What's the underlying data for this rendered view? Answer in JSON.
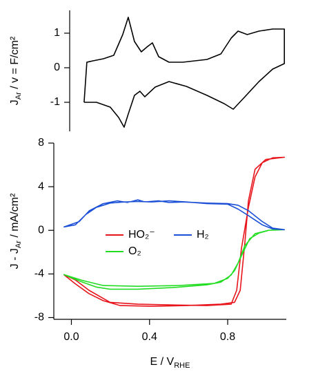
{
  "chart_data": [
    {
      "type": "line",
      "ylabel": [
        {
          "text": "J"
        },
        {
          "text": "Ar",
          "sub": true
        },
        {
          "text": " / v =  F/cm²"
        }
      ],
      "xlim": [
        -0.01,
        1.1
      ],
      "ylim": [
        -1.84,
        1.66
      ],
      "yticks": [
        -1,
        0,
        1
      ],
      "series": [
        {
          "color": "#000000",
          "x": [
            0.064,
            0.078,
            0.11,
            0.163,
            0.216,
            0.262,
            0.29,
            0.322,
            0.357,
            0.386,
            0.414,
            0.446,
            0.499,
            0.57,
            0.694,
            0.765,
            0.818,
            0.853,
            0.9,
            0.96,
            1.03,
            1.09,
            1.09,
            1.03,
            0.96,
            0.888,
            0.828,
            0.782,
            0.694,
            0.588,
            0.499,
            0.428,
            0.375,
            0.35,
            0.322,
            0.29,
            0.269,
            0.241,
            0.198,
            0.127,
            0.064
          ],
          "values": [
            -1.0,
            0.16,
            0.2,
            0.26,
            0.36,
            0.96,
            1.46,
            0.76,
            0.46,
            0.6,
            0.72,
            0.32,
            0.16,
            0.16,
            0.24,
            0.4,
            0.86,
            1.06,
            0.96,
            1.06,
            1.12,
            1.12,
            0.12,
            -0.04,
            -0.4,
            -0.84,
            -1.2,
            -1.04,
            -0.8,
            -0.54,
            -0.4,
            -0.56,
            -0.84,
            -0.68,
            -0.8,
            -1.34,
            -1.72,
            -1.44,
            -1.14,
            -1.0,
            -1.0
          ]
        }
      ]
    },
    {
      "type": "line",
      "ylabel": [
        {
          "text": "J - J"
        },
        {
          "text": "Ar",
          "sub": true
        },
        {
          "text": " / mA/cm²"
        }
      ],
      "xlabel": [
        {
          "text": "E / V"
        },
        {
          "text": "RHE",
          "sub": true
        }
      ],
      "xlim": [
        -0.09,
        1.1
      ],
      "ylim": [
        -8.16,
        8
      ],
      "xticks": [
        {
          "value": 0,
          "label": "0.0"
        },
        0.4,
        0.8
      ],
      "yticks": [
        -8,
        -4,
        0,
        4,
        8
      ],
      "series": [
        {
          "name": "HO₂⁻",
          "color": "#e8141b",
          "x": [
            -0.04,
            0.02,
            0.09,
            0.163,
            0.25,
            0.41,
            0.59,
            0.765,
            0.835,
            0.864,
            0.888,
            0.906,
            0.94,
            0.995,
            1.09,
            1.03,
            0.977,
            0.94,
            0.906,
            0.87,
            0.846,
            0.818,
            0.694,
            0.517,
            0.34,
            0.198,
            0.09,
            0.02,
            -0.04
          ],
          "values": [
            -4.05,
            -4.9,
            -5.8,
            -6.45,
            -6.9,
            -6.96,
            -6.9,
            -6.77,
            -6.6,
            -5.5,
            -1.1,
            2.7,
            5.6,
            6.5,
            6.7,
            6.65,
            6.2,
            4.9,
            2.1,
            -1.7,
            -5.5,
            -6.77,
            -6.9,
            -6.84,
            -6.77,
            -6.6,
            -5.5,
            -4.55,
            -4.05
          ]
        },
        {
          "name": "O₂",
          "color": "#22dd22",
          "x": [
            -0.04,
            0.057,
            0.127,
            0.198,
            0.34,
            0.517,
            0.694,
            0.765,
            0.818,
            0.853,
            0.888,
            0.94,
            1.01,
            1.09,
            1.01,
            0.96,
            0.913,
            0.87,
            0.835,
            0.8,
            0.73,
            0.552,
            0.34,
            0.163,
            0.057,
            -0.04
          ],
          "values": [
            -4.05,
            -4.75,
            -5.2,
            -5.4,
            -5.4,
            -5.25,
            -5.0,
            -4.75,
            -4.1,
            -3.0,
            -1.4,
            -0.3,
            0.0,
            0.06,
            0.0,
            -0.25,
            -0.76,
            -2.35,
            -3.7,
            -4.4,
            -4.87,
            -5.06,
            -5.13,
            -5.06,
            -4.6,
            -4.05
          ]
        },
        {
          "name": "H₂",
          "color": "#1a4fd6",
          "x": [
            -0.04,
            0.02,
            0.074,
            0.127,
            0.198,
            0.27,
            0.34,
            0.41,
            0.5,
            0.59,
            0.694,
            0.8,
            0.853,
            0.906,
            0.977,
            1.03,
            1.09,
            1.03,
            0.977,
            0.906,
            0.853,
            0.8,
            0.694,
            0.57,
            0.5,
            0.446,
            0.375,
            0.34,
            0.287,
            0.234,
            0.163,
            0.092,
            0.04,
            -0.04
          ],
          "values": [
            0.3,
            0.5,
            1.45,
            2.1,
            2.5,
            2.6,
            2.65,
            2.6,
            2.7,
            2.6,
            2.45,
            2.4,
            1.95,
            1.35,
            0.5,
            0.13,
            0.06,
            0.2,
            0.8,
            1.8,
            2.3,
            2.45,
            2.5,
            2.6,
            2.55,
            2.7,
            2.6,
            2.8,
            2.55,
            2.7,
            2.45,
            1.8,
            0.8,
            0.3
          ]
        }
      ]
    }
  ]
}
